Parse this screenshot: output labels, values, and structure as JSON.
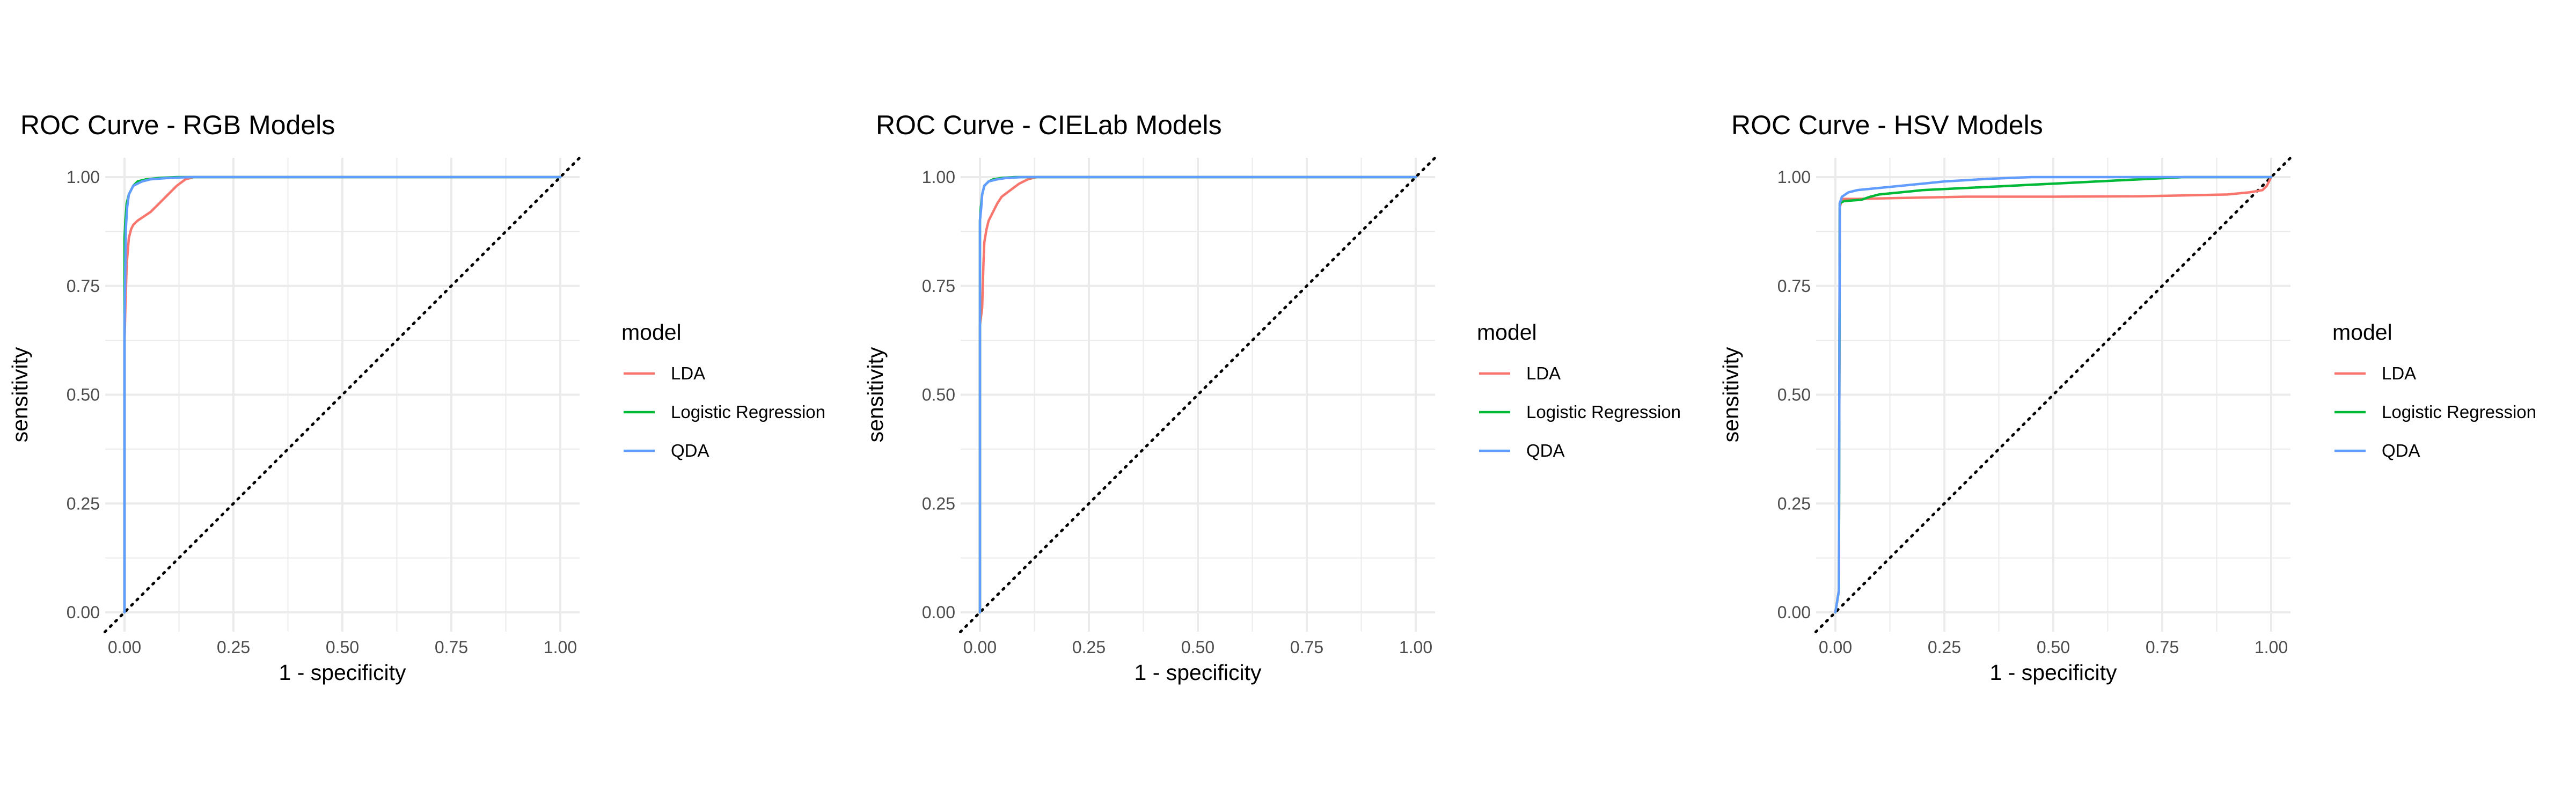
{
  "panels": [
    {
      "title": "ROC Curve - RGB Models",
      "xlabel": "1 - specificity",
      "ylabel": "sensitivity",
      "legend_title": "model",
      "legend": [
        "LDA",
        "Logistic Regression",
        "QDA"
      ]
    },
    {
      "title": "ROC Curve - CIELab Models",
      "xlabel": "1 - specificity",
      "ylabel": "sensitivity",
      "legend_title": "model",
      "legend": [
        "LDA",
        "Logistic Regression",
        "QDA"
      ]
    },
    {
      "title": "ROC Curve - HSV Models",
      "xlabel": "1 - specificity",
      "ylabel": "sensitivity",
      "legend_title": "model",
      "legend": [
        "LDA",
        "Logistic Regression",
        "QDA"
      ]
    }
  ],
  "colors": {
    "LDA": "#F8766D",
    "Logistic Regression": "#00BA38",
    "QDA": "#619CFF",
    "diagonal": "#000000",
    "grid": "#EBEBEB"
  },
  "chart_data": [
    {
      "type": "line",
      "title": "ROC Curve - RGB Models",
      "xlabel": "1 - specificity",
      "ylabel": "sensitivity",
      "xlim": [
        0,
        1
      ],
      "ylim": [
        0,
        1
      ],
      "xticks": [
        "0.00",
        "0.25",
        "0.50",
        "0.75",
        "1.00"
      ],
      "yticks": [
        "0.00",
        "0.25",
        "0.50",
        "0.75",
        "1.00"
      ],
      "grid": true,
      "legend_position": "right",
      "reference_line": "diagonal",
      "series": [
        {
          "name": "LDA",
          "x": [
            0,
            0,
            0.002,
            0.005,
            0.01,
            0.015,
            0.02,
            0.03,
            0.045,
            0.06,
            0.08,
            0.1,
            0.12,
            0.14,
            0.16,
            0.2,
            0.5,
            1.0
          ],
          "y": [
            0,
            0.62,
            0.7,
            0.8,
            0.86,
            0.88,
            0.89,
            0.9,
            0.91,
            0.92,
            0.94,
            0.96,
            0.98,
            0.995,
            1.0,
            1.0,
            1.0,
            1.0
          ]
        },
        {
          "name": "Logistic Regression",
          "x": [
            0,
            0,
            0.002,
            0.005,
            0.01,
            0.02,
            0.03,
            0.05,
            0.08,
            0.12,
            0.2,
            1.0
          ],
          "y": [
            0,
            0.86,
            0.9,
            0.94,
            0.96,
            0.98,
            0.99,
            0.995,
            0.998,
            1.0,
            1.0,
            1.0
          ]
        },
        {
          "name": "QDA",
          "x": [
            0,
            0,
            0.003,
            0.006,
            0.01,
            0.02,
            0.04,
            0.06,
            0.1,
            0.15,
            1.0
          ],
          "y": [
            0,
            0.65,
            0.88,
            0.93,
            0.96,
            0.98,
            0.99,
            0.995,
            0.998,
            1.0,
            1.0
          ]
        }
      ]
    },
    {
      "type": "line",
      "title": "ROC Curve - CIELab Models",
      "xlabel": "1 - specificity",
      "ylabel": "sensitivity",
      "xlim": [
        0,
        1
      ],
      "ylim": [
        0,
        1
      ],
      "xticks": [
        "0.00",
        "0.25",
        "0.50",
        "0.75",
        "1.00"
      ],
      "yticks": [
        "0.00",
        "0.25",
        "0.50",
        "0.75",
        "1.00"
      ],
      "grid": true,
      "legend_position": "right",
      "reference_line": "diagonal",
      "series": [
        {
          "name": "LDA",
          "x": [
            0,
            0,
            0.005,
            0.008,
            0.01,
            0.015,
            0.02,
            0.03,
            0.04,
            0.05,
            0.07,
            0.09,
            0.11,
            0.13,
            0.2,
            0.5,
            1.0
          ],
          "y": [
            0,
            0.66,
            0.7,
            0.8,
            0.85,
            0.88,
            0.9,
            0.92,
            0.94,
            0.955,
            0.97,
            0.985,
            0.995,
            1.0,
            1.0,
            1.0,
            1.0
          ]
        },
        {
          "name": "Logistic Regression",
          "x": [
            0,
            0,
            0.002,
            0.005,
            0.01,
            0.02,
            0.03,
            0.05,
            0.08,
            0.12,
            0.2,
            1.0
          ],
          "y": [
            0,
            0.9,
            0.93,
            0.96,
            0.98,
            0.99,
            0.995,
            0.998,
            1.0,
            1.0,
            1.0,
            1.0
          ]
        },
        {
          "name": "QDA",
          "x": [
            0,
            0,
            0.003,
            0.005,
            0.01,
            0.02,
            0.04,
            0.06,
            0.1,
            1.0
          ],
          "y": [
            0,
            0.9,
            0.93,
            0.96,
            0.98,
            0.99,
            0.995,
            0.998,
            1.0,
            1.0
          ]
        }
      ]
    },
    {
      "type": "line",
      "title": "ROC Curve - HSV Models",
      "xlabel": "1 - specificity",
      "ylabel": "sensitivity",
      "xlim": [
        0,
        1
      ],
      "ylim": [
        0,
        1
      ],
      "xticks": [
        "0.00",
        "0.25",
        "0.50",
        "0.75",
        "1.00"
      ],
      "yticks": [
        "0.00",
        "0.25",
        "0.50",
        "0.75",
        "1.00"
      ],
      "grid": true,
      "legend_position": "right",
      "reference_line": "diagonal",
      "series": [
        {
          "name": "LDA",
          "x": [
            0,
            0.008,
            0.01,
            0.015,
            0.05,
            0.15,
            0.3,
            0.5,
            0.7,
            0.8,
            0.9,
            0.95,
            0.98,
            0.99,
            1.0
          ],
          "y": [
            0,
            0.05,
            0.93,
            0.95,
            0.95,
            0.952,
            0.955,
            0.955,
            0.956,
            0.958,
            0.96,
            0.965,
            0.97,
            0.98,
            1.0
          ]
        },
        {
          "name": "Logistic Regression",
          "x": [
            0,
            0.008,
            0.01,
            0.02,
            0.06,
            0.08,
            0.1,
            0.15,
            0.2,
            0.3,
            0.4,
            0.5,
            0.6,
            0.7,
            0.8,
            0.9,
            1.0
          ],
          "y": [
            0,
            0.05,
            0.94,
            0.945,
            0.948,
            0.955,
            0.96,
            0.965,
            0.97,
            0.975,
            0.98,
            0.985,
            0.99,
            0.995,
            1.0,
            1.0,
            1.0
          ]
        },
        {
          "name": "QDA",
          "x": [
            0,
            0.008,
            0.01,
            0.015,
            0.03,
            0.05,
            0.1,
            0.15,
            0.2,
            0.25,
            0.3,
            0.35,
            0.4,
            0.45,
            1.0
          ],
          "y": [
            0,
            0.05,
            0.94,
            0.955,
            0.965,
            0.97,
            0.975,
            0.98,
            0.985,
            0.99,
            0.993,
            0.996,
            0.998,
            1.0,
            1.0
          ]
        }
      ]
    }
  ]
}
